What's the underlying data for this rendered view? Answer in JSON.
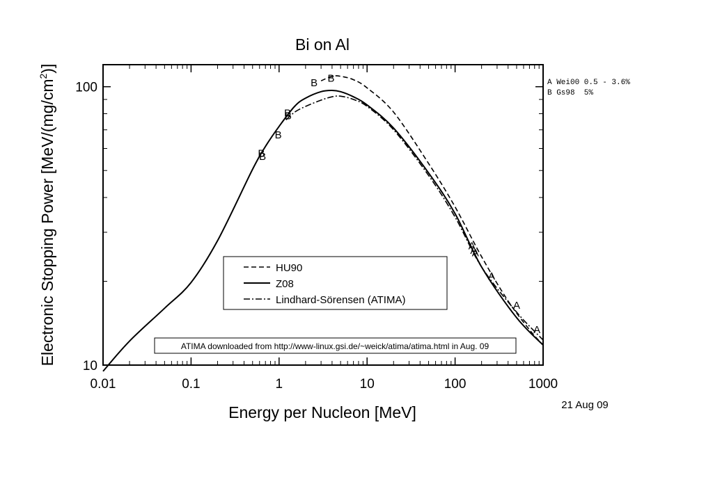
{
  "chart_data": {
    "type": "line",
    "title": "Bi on Al",
    "xlabel": "Energy per Nucleon [MeV]",
    "ylabel_main": "Electronic Stopping Power [MeV/(mg/cm",
    "ylabel_sup": "2",
    "ylabel_close": ")]",
    "x_scale": "log",
    "y_scale": "log",
    "xlim": [
      0.01,
      1000
    ],
    "ylim": [
      10,
      120
    ],
    "x_ticks": [
      0.01,
      0.1,
      1,
      10,
      100,
      1000
    ],
    "x_tick_labels": [
      "0.01",
      "0.1",
      "1",
      "10",
      "100",
      "1000"
    ],
    "y_ticks": [
      10,
      100
    ],
    "y_tick_labels": [
      "10",
      "100"
    ],
    "grid": false,
    "legend_position": "lower-center",
    "series": [
      {
        "name": "HU90",
        "style": "dashed",
        "x": [
          3,
          4,
          5,
          7,
          10,
          20,
          50,
          100,
          200,
          400,
          700,
          1000
        ],
        "y": [
          105,
          109,
          109,
          106,
          99,
          81,
          53,
          37,
          24.5,
          17,
          13.4,
          11.8
        ]
      },
      {
        "name": "Z08",
        "style": "solid",
        "x": [
          0.01,
          0.02,
          0.05,
          0.1,
          0.2,
          0.5,
          0.7,
          1,
          1.5,
          2,
          3,
          4,
          5,
          7,
          10,
          20,
          50,
          100,
          200,
          500,
          1000
        ],
        "y": [
          9.5,
          12.2,
          16,
          19.8,
          28,
          50.5,
          61,
          72,
          85,
          91,
          96,
          97,
          96,
          92,
          86,
          71,
          49,
          35,
          22.5,
          14.8,
          11.8
        ]
      },
      {
        "name": "Lindhard-Sörensen (ATIMA)",
        "style": "dashdot",
        "x": [
          1.2,
          1.5,
          2,
          3,
          4,
          5,
          7,
          10,
          20,
          50,
          100,
          200,
          500,
          1000
        ],
        "y": [
          76,
          81,
          85,
          89.5,
          92,
          92.5,
          90,
          85,
          70,
          48,
          34,
          22.5,
          15.5,
          12.3
        ]
      }
    ],
    "data_points": [
      {
        "label": "A",
        "x": 155,
        "y": 27
      },
      {
        "label": "A",
        "x": 163,
        "y": 26
      },
      {
        "label": "A",
        "x": 170,
        "y": 25.5
      },
      {
        "label": "A",
        "x": 260,
        "y": 21
      },
      {
        "label": "A",
        "x": 500,
        "y": 16.5
      },
      {
        "label": "A",
        "x": 850,
        "y": 13.5
      },
      {
        "label": "B",
        "x": 0.63,
        "y": 58
      },
      {
        "label": "B",
        "x": 0.65,
        "y": 56.5
      },
      {
        "label": "B",
        "x": 0.98,
        "y": 67.5
      },
      {
        "label": "B",
        "x": 1.25,
        "y": 81
      },
      {
        "label": "B",
        "x": 1.27,
        "y": 79
      },
      {
        "label": "B",
        "x": 2.5,
        "y": 104
      },
      {
        "label": "B",
        "x": 3.9,
        "y": 108
      }
    ],
    "data_sources": [
      {
        "label": "A Wei00 0.5 - 3.6%"
      },
      {
        "label": "B Gs98  5%"
      }
    ],
    "note": "ATIMA downloaded from http://www-linux.gsi.de/~weick/atima/atima.html in Aug. 09",
    "date": "21 Aug 09"
  }
}
